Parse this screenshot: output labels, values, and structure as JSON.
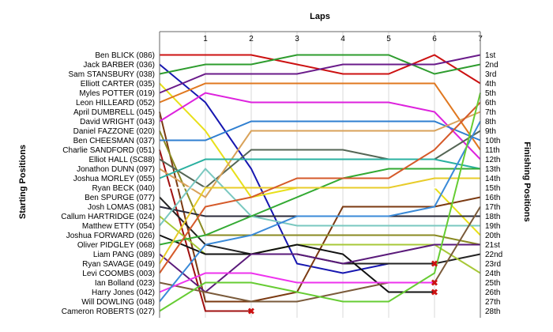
{
  "chart_data": {
    "type": "line",
    "title": "",
    "xlabel": "Laps",
    "ylabel_left": "Starting Positions",
    "ylabel_right": "Finishing Positions",
    "x": [
      0,
      1,
      2,
      3,
      4,
      5,
      6,
      7
    ],
    "x_ticks": [
      "1",
      "2",
      "3",
      "4",
      "5",
      "6",
      "7"
    ],
    "ylim": [
      1,
      28
    ],
    "y_inverted": true,
    "finish_labels": [
      "1st",
      "2nd",
      "3rd",
      "4th",
      "5th",
      "6th",
      "7th",
      "8th",
      "9th",
      "10th",
      "11th",
      "12th",
      "13th",
      "14th",
      "15th",
      "16th",
      "17th",
      "18th",
      "19th",
      "20th",
      "21st",
      "22nd",
      "23rd",
      "24th",
      "25th",
      "26th",
      "27th",
      "28th"
    ],
    "retired_marker_symbol": "✖",
    "series": [
      {
        "name": "Ben BLICK (086)",
        "color": "#cc1111",
        "values": [
          1,
          1,
          1,
          2,
          3,
          3,
          1,
          4
        ]
      },
      {
        "name": "Jack BARBER (036)",
        "color": "#1616b0",
        "values": [
          2,
          6,
          13,
          23,
          24,
          23,
          23,
          null
        ]
      },
      {
        "name": "Sam STANSBURY (038)",
        "color": "#2e9c2e",
        "values": [
          3,
          2,
          2,
          1,
          1,
          1,
          3,
          2
        ]
      },
      {
        "name": "Elliott CARTER (035)",
        "color": "#e8e01a",
        "values": [
          4,
          9,
          16,
          15,
          15,
          15,
          15,
          20
        ]
      },
      {
        "name": "Myles POTTER (019)",
        "color": "#6a1b8a",
        "values": [
          5,
          3,
          3,
          3,
          2,
          2,
          2,
          1
        ]
      },
      {
        "name": "Leon HILLEARD (052)",
        "color": "#e07820",
        "values": [
          6,
          4,
          4,
          4,
          4,
          4,
          4,
          11
        ]
      },
      {
        "name": "April DUMBRELL (045)",
        "color": "#7b3a12",
        "values": [
          7,
          27,
          27,
          26,
          17,
          17,
          17,
          16
        ]
      },
      {
        "name": "David WRIGHT (043)",
        "color": "#dd22dd",
        "values": [
          8,
          5,
          6,
          6,
          6,
          6,
          7,
          12
        ]
      },
      {
        "name": "Daniel FAZZONE (020)",
        "color": "#8a8a22",
        "values": [
          9,
          20,
          20,
          20,
          20,
          20,
          20,
          21
        ]
      },
      {
        "name": "Ben CHEESMAN (037)",
        "color": "#2f7fd0",
        "values": [
          10,
          10,
          8,
          8,
          8,
          8,
          8,
          10
        ]
      },
      {
        "name": "Charlie SANDFORD (051)",
        "color": "#a01010",
        "values": [
          11,
          28,
          28,
          null,
          null,
          null,
          null,
          null
        ]
      },
      {
        "name": "Elliot HALL (SC88)",
        "color": "#556655",
        "values": [
          12,
          15,
          11,
          11,
          11,
          12,
          12,
          9
        ]
      },
      {
        "name": "Jonathon DUNN (097)",
        "color": "#d9a25a",
        "values": [
          13,
          16,
          9,
          9,
          9,
          9,
          9,
          7
        ]
      },
      {
        "name": "Joshua MORLEY (055)",
        "color": "#2ab0a0",
        "values": [
          14,
          12,
          12,
          12,
          12,
          12,
          12,
          13
        ]
      },
      {
        "name": "Ryan BECK (040)",
        "color": "#ffffff",
        "values": [
          15,
          15,
          15,
          15,
          15,
          15,
          15,
          15
        ]
      },
      {
        "name": "Ben SPURGE (077)",
        "color": "#232323",
        "values": [
          16,
          21,
          22,
          22,
          23,
          23,
          23,
          22
        ]
      },
      {
        "name": "Josh LOMAS (081)",
        "color": "#2a2a3a",
        "values": [
          17,
          18,
          18,
          18,
          18,
          18,
          18,
          18
        ]
      },
      {
        "name": "Callum HARTRIDGE (024)",
        "color": "#a7c838",
        "values": [
          18,
          22,
          22,
          21,
          21,
          21,
          21,
          24
        ]
      },
      {
        "name": "Matthew ETTY (054)",
        "color": "#7ac8c0",
        "values": [
          19,
          13,
          18,
          19,
          19,
          19,
          19,
          19
        ]
      },
      {
        "name": "Joshua FORWARD (026)",
        "color": "#101010",
        "values": [
          20,
          22,
          22,
          21,
          22,
          26,
          26,
          null
        ]
      },
      {
        "name": "Oliver PIDGLEY (068)",
        "color": "#33aa33",
        "values": [
          21,
          20,
          18,
          16,
          14,
          13,
          13,
          13
        ]
      },
      {
        "name": "Liam PANG (089)",
        "color": "#5a1a7a",
        "values": [
          22,
          26,
          22,
          22,
          23,
          22,
          21,
          21
        ]
      },
      {
        "name": "Ryan SAVAGE (049)",
        "color": "#e8cc2a",
        "values": [
          23,
          15,
          15,
          15,
          15,
          15,
          14,
          14
        ]
      },
      {
        "name": "Levi COOMBS (003)",
        "color": "#d55a2a",
        "values": [
          24,
          17,
          16,
          14,
          14,
          14,
          11,
          6
        ]
      },
      {
        "name": "Ian Bolland (023)",
        "color": "#7a5a3a",
        "values": [
          25,
          26,
          27,
          27,
          26,
          25,
          25,
          17
        ]
      },
      {
        "name": "Harry Jones (042)",
        "color": "#ee33ee",
        "values": [
          26,
          24,
          24,
          25,
          25,
          25,
          25,
          null
        ]
      },
      {
        "name": "Will DOWLING (048)",
        "color": "#3a8ad8",
        "values": [
          27,
          21,
          20,
          18,
          18,
          18,
          17,
          8
        ]
      },
      {
        "name": "Cameron ROBERTS (027)",
        "color": "#66cc33",
        "values": [
          28,
          25,
          25,
          26,
          27,
          27,
          24,
          5
        ]
      }
    ]
  }
}
